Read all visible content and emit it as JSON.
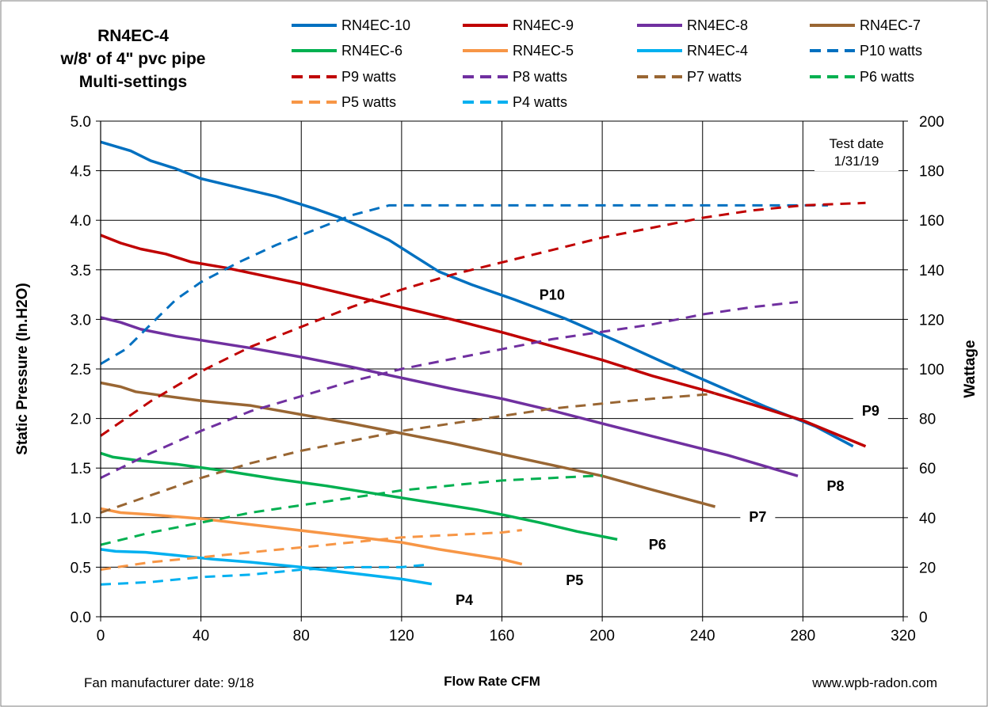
{
  "chart_data": {
    "type": "line",
    "title_lines": [
      "RN4EC-4",
      "w/8' of 4\" pvc pipe",
      "Multi-settings"
    ],
    "xlabel": "Flow Rate CFM",
    "ylabel": "Static Pressure (In.H2O)",
    "y2label": "Wattage",
    "xlim": [
      0,
      320
    ],
    "ylim": [
      0,
      5
    ],
    "y2lim": [
      0,
      200
    ],
    "xticks": [
      "0",
      "40",
      "80",
      "120",
      "160",
      "200",
      "240",
      "280",
      "320"
    ],
    "yticks": [
      "0.0",
      "0.5",
      "1.0",
      "1.5",
      "2.0",
      "2.5",
      "3.0",
      "3.5",
      "4.0",
      "4.5",
      "5.0"
    ],
    "y2ticks": [
      "0",
      "20",
      "40",
      "60",
      "80",
      "100",
      "120",
      "140",
      "160",
      "180",
      "200"
    ],
    "grid": true,
    "legend_position": "top",
    "series": [
      {
        "name": "RN4EC-10",
        "axis": "left",
        "style": "solid",
        "color": "#0070C0",
        "x": [
          0,
          12,
          20,
          30,
          40,
          55,
          70,
          85,
          95,
          105,
          115,
          125,
          135,
          148,
          165,
          185,
          205,
          225,
          245,
          265,
          285,
          300
        ],
        "y": [
          4.79,
          4.7,
          4.6,
          4.52,
          4.42,
          4.33,
          4.24,
          4.12,
          4.03,
          3.92,
          3.8,
          3.64,
          3.48,
          3.35,
          3.2,
          3.01,
          2.79,
          2.56,
          2.34,
          2.12,
          1.92,
          1.72
        ]
      },
      {
        "name": "RN4EC-9",
        "axis": "left",
        "style": "solid",
        "color": "#C00000",
        "x": [
          0,
          8,
          16,
          26,
          36,
          50,
          65,
          80,
          95,
          110,
          125,
          140,
          160,
          180,
          200,
          220,
          240,
          260,
          280,
          305
        ],
        "y": [
          3.85,
          3.77,
          3.71,
          3.66,
          3.58,
          3.52,
          3.44,
          3.36,
          3.27,
          3.18,
          3.09,
          3,
          2.87,
          2.73,
          2.59,
          2.43,
          2.29,
          2.14,
          1.98,
          1.72
        ]
      },
      {
        "name": "RN4EC-8",
        "axis": "left",
        "style": "solid",
        "color": "#7030A0",
        "x": [
          0,
          8,
          16,
          30,
          45,
          60,
          80,
          100,
          120,
          140,
          160,
          180,
          200,
          220,
          250,
          278
        ],
        "y": [
          3.02,
          2.97,
          2.9,
          2.83,
          2.77,
          2.71,
          2.62,
          2.52,
          2.41,
          2.3,
          2.2,
          2.08,
          1.95,
          1.82,
          1.63,
          1.42
        ]
      },
      {
        "name": "RN4EC-7",
        "axis": "left",
        "style": "solid",
        "color": "#996633",
        "x": [
          0,
          8,
          14,
          25,
          40,
          60,
          80,
          100,
          120,
          140,
          160,
          180,
          200,
          220,
          245
        ],
        "y": [
          2.36,
          2.32,
          2.27,
          2.23,
          2.18,
          2.13,
          2.04,
          1.95,
          1.85,
          1.75,
          1.64,
          1.53,
          1.42,
          1.28,
          1.11
        ]
      },
      {
        "name": "RN4EC-6",
        "axis": "left",
        "style": "solid",
        "color": "#00B050",
        "x": [
          0,
          5,
          14,
          30,
          50,
          70,
          90,
          110,
          130,
          150,
          160,
          175,
          190,
          206
        ],
        "y": [
          1.65,
          1.61,
          1.58,
          1.54,
          1.47,
          1.39,
          1.32,
          1.24,
          1.16,
          1.08,
          1.03,
          0.95,
          0.86,
          0.78
        ]
      },
      {
        "name": "RN4EC-5",
        "axis": "left",
        "style": "solid",
        "color": "#F79646",
        "x": [
          0,
          8,
          20,
          40,
          60,
          80,
          100,
          120,
          135,
          150,
          160,
          168
        ],
        "y": [
          1.09,
          1.05,
          1.03,
          0.99,
          0.93,
          0.87,
          0.81,
          0.75,
          0.68,
          0.62,
          0.58,
          0.53
        ]
      },
      {
        "name": "RN4EC-4",
        "axis": "left",
        "style": "solid",
        "color": "#00B0F0",
        "x": [
          0,
          6,
          18,
          30,
          45,
          60,
          80,
          100,
          120,
          132
        ],
        "y": [
          0.68,
          0.66,
          0.65,
          0.62,
          0.58,
          0.55,
          0.5,
          0.44,
          0.38,
          0.33
        ]
      },
      {
        "name": "P10 watts",
        "axis": "right",
        "style": "dashed",
        "color": "#0070C0",
        "x": [
          0,
          10,
          20,
          30,
          40,
          55,
          70,
          85,
          100,
          115,
          130,
          160,
          200,
          240,
          280,
          290
        ],
        "y": [
          102,
          108,
          118,
          128,
          135,
          143,
          150,
          156,
          162,
          166,
          166,
          166,
          166,
          166,
          166,
          166
        ]
      },
      {
        "name": "P9 watts",
        "axis": "right",
        "style": "dashed",
        "color": "#C00000",
        "x": [
          0,
          20,
          40,
          60,
          80,
          100,
          120,
          140,
          160,
          180,
          200,
          220,
          240,
          260,
          280,
          305
        ],
        "y": [
          73,
          87,
          99,
          109,
          117,
          125,
          132,
          138,
          143,
          148,
          153,
          157,
          161,
          164,
          166,
          167
        ]
      },
      {
        "name": "P8 watts",
        "axis": "right",
        "style": "dashed",
        "color": "#7030A0",
        "x": [
          0,
          20,
          40,
          60,
          80,
          100,
          120,
          140,
          160,
          180,
          200,
          220,
          240,
          260,
          278
        ],
        "y": [
          56,
          66,
          75,
          83,
          89,
          95,
          100,
          104,
          108,
          112,
          115,
          118,
          122,
          125,
          127
        ]
      },
      {
        "name": "P7 watts",
        "axis": "right",
        "style": "dashed",
        "color": "#996633",
        "x": [
          0,
          20,
          40,
          60,
          80,
          100,
          120,
          140,
          160,
          180,
          200,
          220,
          245
        ],
        "y": [
          42,
          49,
          56,
          62,
          67,
          71,
          75,
          78,
          81,
          84,
          86,
          88,
          90
        ]
      },
      {
        "name": "P6 watts",
        "axis": "right",
        "style": "dashed",
        "color": "#00B050",
        "x": [
          0,
          20,
          40,
          60,
          80,
          100,
          120,
          140,
          160,
          180,
          200
        ],
        "y": [
          29,
          34,
          38,
          42,
          45,
          48,
          51,
          53,
          55,
          56,
          57
        ]
      },
      {
        "name": "P5 watts",
        "axis": "right",
        "style": "dashed",
        "color": "#F79646",
        "x": [
          0,
          20,
          40,
          60,
          80,
          100,
          120,
          140,
          160,
          168
        ],
        "y": [
          19,
          22,
          24,
          26,
          28,
          30,
          32,
          33,
          34,
          35
        ]
      },
      {
        "name": "P4 watts",
        "axis": "right",
        "style": "dashed",
        "color": "#00B0F0",
        "x": [
          0,
          20,
          40,
          60,
          80,
          100,
          120,
          130
        ],
        "y": [
          13,
          14,
          16,
          17,
          19,
          20,
          20,
          21
        ]
      }
    ],
    "annotations": [
      {
        "text": "P10",
        "x": 180,
        "y": 3.2
      },
      {
        "text": "P9",
        "x": 307,
        "y": 2.03
      },
      {
        "text": "P8",
        "x": 293,
        "y": 1.27
      },
      {
        "text": "P7",
        "x": 262,
        "y": 0.96
      },
      {
        "text": "P6",
        "x": 222,
        "y": 0.68
      },
      {
        "text": "P5",
        "x": 189,
        "y": 0.32
      },
      {
        "text": "P4",
        "x": 145,
        "y": 0.12
      }
    ],
    "test_date_lines": [
      "Test date",
      "1/31/19"
    ]
  },
  "footer": {
    "left": "Fan manufacturer date: 9/18",
    "center": "Flow Rate CFM",
    "right": "www.wpb-radon.com"
  }
}
